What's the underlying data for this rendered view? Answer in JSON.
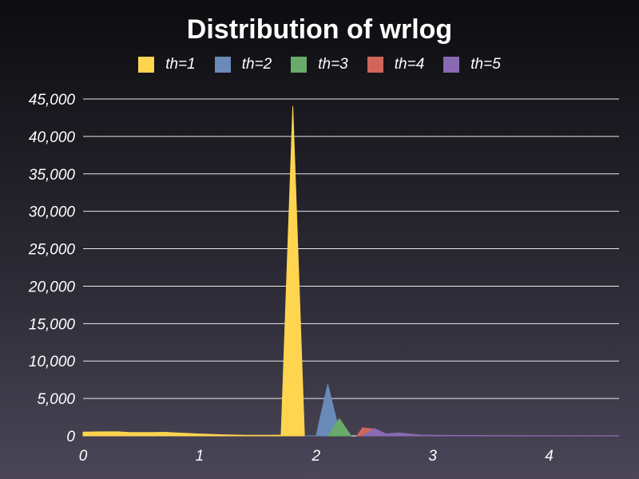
{
  "chart_data": {
    "type": "area",
    "title": "Distribution of wrlog",
    "xlabel": "",
    "ylabel": "",
    "xlim": [
      0,
      4.6
    ],
    "ylim": [
      0,
      45000
    ],
    "x_ticks": [
      0,
      1,
      2,
      3,
      4
    ],
    "x_tick_labels": [
      "0",
      "1",
      "2",
      "3",
      "4"
    ],
    "y_ticks": [
      0,
      5000,
      10000,
      15000,
      20000,
      25000,
      30000,
      35000,
      40000,
      45000
    ],
    "y_tick_labels": [
      "0",
      "5,000",
      "10,000",
      "15,000",
      "20,000",
      "25,000",
      "30,000",
      "35,000",
      "40,000",
      "45,000"
    ],
    "grid": "horizontal",
    "legend_position": "top",
    "series": [
      {
        "name": "th=1",
        "color": "#FFD54F",
        "points": [
          [
            0,
            500
          ],
          [
            0.2,
            550
          ],
          [
            0.3,
            550
          ],
          [
            0.4,
            450
          ],
          [
            0.6,
            450
          ],
          [
            0.7,
            480
          ],
          [
            0.8,
            400
          ],
          [
            1.0,
            250
          ],
          [
            1.2,
            150
          ],
          [
            1.4,
            80
          ],
          [
            1.6,
            80
          ],
          [
            1.7,
            100
          ],
          [
            1.8,
            44000
          ],
          [
            1.9,
            0
          ]
        ]
      },
      {
        "name": "th=2",
        "color": "#6A8AB8",
        "points": [
          [
            1.9,
            0
          ],
          [
            2.0,
            0
          ],
          [
            2.1,
            6900
          ],
          [
            2.2,
            600
          ],
          [
            2.3,
            0
          ]
        ]
      },
      {
        "name": "th=3",
        "color": "#6AAA6A",
        "points": [
          [
            2.1,
            0
          ],
          [
            2.2,
            2300
          ],
          [
            2.3,
            0
          ]
        ]
      },
      {
        "name": "th=4",
        "color": "#D0665A",
        "points": [
          [
            2.35,
            0
          ],
          [
            2.4,
            1100
          ],
          [
            2.5,
            900
          ],
          [
            2.6,
            200
          ],
          [
            2.7,
            0
          ]
        ]
      },
      {
        "name": "th=5",
        "color": "#8A6AB4",
        "points": [
          [
            2.4,
            0
          ],
          [
            2.5,
            1000
          ],
          [
            2.6,
            250
          ],
          [
            2.7,
            400
          ],
          [
            2.8,
            250
          ],
          [
            2.9,
            120
          ],
          [
            3.0,
            80
          ],
          [
            3.2,
            60
          ],
          [
            3.5,
            40
          ],
          [
            4.0,
            30
          ],
          [
            4.6,
            30
          ]
        ]
      }
    ]
  }
}
